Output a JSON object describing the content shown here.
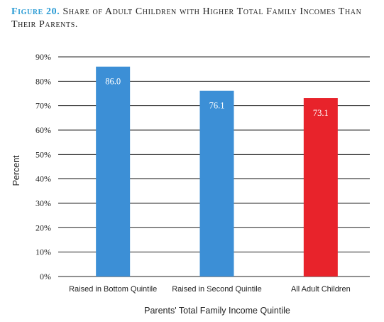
{
  "figure": {
    "label": "Figure 20.",
    "title": "Share of Adult Children with Higher Total Family Incomes Than Their Parents."
  },
  "chart_data": {
    "type": "bar",
    "categories": [
      "Raised in Bottom Quintile",
      "Raised in Second Quintile",
      "All Adult Children"
    ],
    "values": [
      86.0,
      76.1,
      73.1
    ],
    "data_labels": [
      "86.0",
      "76.1",
      "73.1"
    ],
    "colors": [
      "#3c8fd6",
      "#3c8fd6",
      "#e8232b"
    ],
    "xlabel": "Parents' Total Family Income Quintile",
    "ylabel": "Percent",
    "ylim": [
      0,
      90
    ],
    "yticks": [
      0,
      10,
      20,
      30,
      40,
      50,
      60,
      70,
      80,
      90
    ],
    "ytick_labels": [
      "0%",
      "10%",
      "20%",
      "30%",
      "40%",
      "50%",
      "60%",
      "70%",
      "80%",
      "90%"
    ],
    "grid": true,
    "gridline_color": "#222222"
  }
}
